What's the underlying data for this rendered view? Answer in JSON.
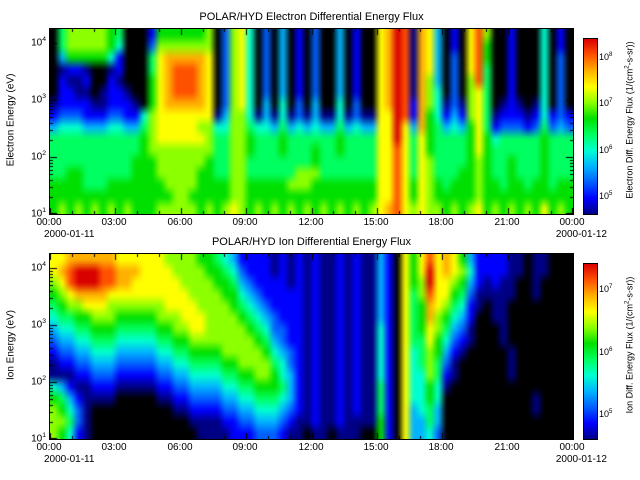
{
  "window": {
    "background": "#ffffff"
  },
  "palette": [
    "#000000",
    "#000085",
    "#0000ff",
    "#0060ff",
    "#00b4ff",
    "#00ffd0",
    "#00ff60",
    "#00e000",
    "#8cff00",
    "#ffff00",
    "#ffb000",
    "#ff5000",
    "#d90000"
  ],
  "chart_data": [
    {
      "type": "heatmap",
      "title": "POLAR/HYD  Electron Differential Energy Flux",
      "ylabel": "Electron Energy (eV)",
      "y_axis": {
        "scale": "log",
        "unit": "eV",
        "ticks": [
          "10^4",
          "10^3",
          "10^2",
          "10^1"
        ]
      },
      "x_axis": {
        "ticks": [
          "00:00",
          "03:00",
          "06:00",
          "09:00",
          "12:00",
          "15:00",
          "18:00",
          "21:00",
          "00:00"
        ],
        "date_left": "2000-01-11",
        "date_right": "2000-01-12"
      },
      "colorbar": {
        "scale": "log",
        "label": "Electron Diff. Energy Flux  (1/(cm^2-s-sr))",
        "ticks": [
          "10^8",
          "10^7",
          "10^6",
          "10^5"
        ]
      },
      "flux_grid": {
        "value_encoding": "hex digit 0 (black, minimum flux) to c (red, maximum flux); 64 time columns spanning 00:00-24:00; 16 rows spanning log energy 10^4 eV (top) to 10^1 eV (bottom)",
        "rows": [
          "06888887600027777778038950304020300402009acb1a940209b80020005020",
          "06888887500038888888038950304020300402009acb1a940209b70020005020",
          "04777775200069aaaaa9038950304020300402009acb1a940309b70020005030",
          "01221001200069abbba9038950304020300402009acb1a940309b60020005030",
          "02112002100079abbba9038950304020300402009acb1a840308b60020005030",
          "02211012210079abbba9038950304020300402009acb1a850308960020005030",
          "12222112221079aaaaa9038950405030400503009acb2a851318960121015030",
          "233322233225899999991488514151314115131199cb2a752428961222125232",
          "455544455446899999885588655464545446454499c94a764547962333236343",
          "666666666667899999986688766676666667666699c969766667975666667666",
          "666666666667888888886688766676667667666699b969766667976666667666",
          "666666666677788888876688666666667666666699b969866667876676667666",
          "667766666677788888776688666666888666666699b969866677876676667666",
          "777766677777778888777788777778887777777799b979876777877677677677",
          "777777777777777887777788777777777777777799b979877777877777777777",
          "78787878787778888878789878787878787878789ab989887878978787879787"
        ]
      }
    },
    {
      "type": "heatmap",
      "title": "POLAR/HYD  Ion Differential Energy Flux",
      "ylabel": "Ion Energy (eV)",
      "y_axis": {
        "scale": "log",
        "unit": "eV",
        "ticks": [
          "10^4",
          "10^3",
          "10^2",
          "10^1"
        ]
      },
      "x_axis": {
        "ticks": [
          "00:00",
          "03:00",
          "06:00",
          "09:00",
          "12:00",
          "15:00",
          "18:00",
          "21:00",
          "00:00"
        ],
        "date_left": "2000-01-11",
        "date_right": "2000-01-12"
      },
      "colorbar": {
        "scale": "log",
        "label": "Ion Diff. Energy Flux  (1/(cm^2-s-sr))",
        "ticks": [
          "10^7",
          "10^6",
          "10^5"
        ]
      },
      "flux_grid": {
        "value_encoding": "hex digit 0 (black, minimum flux) to c (red, maximum flux); 64 time columns spanning 00:00-24:00; 16 rows spanning log energy 10^4 eV (top) to 10^1 eV (bottom)",
        "rows": [
          "99aaaaaa99999988887765422221212121121211420979b9a974222211011000",
          "9abcccbbaaa99998888776532221212121121211420979c9a985222211011000",
          "89bcccbbaa999999888877643222212121121211420978c99874212110010000",
          "789aaaa999999999988887754322222121121211420968b99763111110010000",
          "6788999888888899998888765432222121121211420967a98652101100000000",
          "5667788877777888999888876543222121121211420967a87542001100000000",
          "4556677766666778899888887653322121121211520967986431000100000000",
          "3445566655555667788888888764322121121211520966975321000100000000",
          "2334455544444556677778888875432121121211520956874210000010000000",
          "1223344433333445566667788886532121121211520956863100000010000000",
          "1112233322222334455556677887542121121211520955862100000010000000",
          "5421122211111223344445566777642121121211620955751000000000000000",
          "7642111100000112233334455666542121121211620955750000000000010000",
          "8753100000000001122223344555432121121211620945640000000000010000",
          "8863100000000000011112233444321121121111720944640000000000000000",
          "8752100000000000001111222333211011011100720944530000000000000000"
        ]
      }
    }
  ]
}
